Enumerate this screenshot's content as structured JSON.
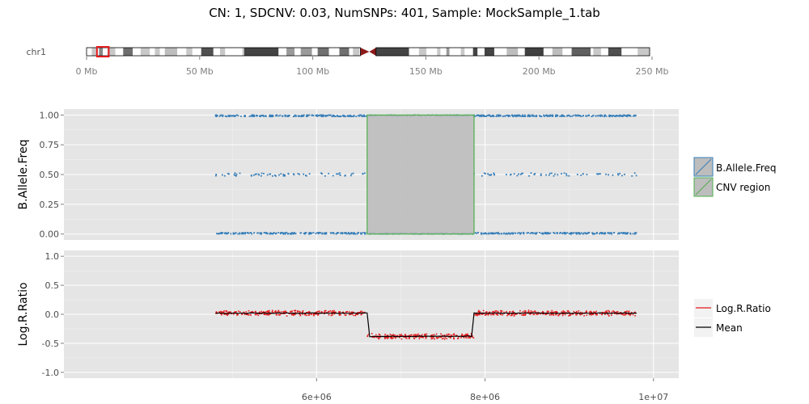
{
  "title": "CN: 1, SDCNV: 0.03, NumSNPs: 401, Sample: MockSample_1.tab",
  "ideogram": {
    "chrom_label": "chr1",
    "axis_ticks": [
      0,
      50,
      100,
      150,
      200,
      250
    ],
    "axis_tick_labels": [
      "0 Mb",
      "50 Mb",
      "100 Mb",
      "150 Mb",
      "200 Mb",
      "250 Mb"
    ],
    "chrom_length_mb": 249,
    "highlight_mb": [
      4.6,
      9.8
    ],
    "centromere_mb": 125,
    "highlight_color": "#e41a1c",
    "bands": [
      {
        "start": 0,
        "end": 2.3,
        "shade": "#ffffff"
      },
      {
        "start": 2.3,
        "end": 4.3,
        "shade": "#c8c8c8"
      },
      {
        "start": 4.3,
        "end": 5.5,
        "shade": "#ffffff"
      },
      {
        "start": 5.5,
        "end": 7.2,
        "shade": "#888888"
      },
      {
        "start": 7.2,
        "end": 9.2,
        "shade": "#ffffff"
      },
      {
        "start": 9.2,
        "end": 12.7,
        "shade": "#c8c8c8"
      },
      {
        "start": 12.7,
        "end": 16.2,
        "shade": "#ffffff"
      },
      {
        "start": 16.2,
        "end": 20.4,
        "shade": "#6e6e6e"
      },
      {
        "start": 20.4,
        "end": 23.9,
        "shade": "#ffffff"
      },
      {
        "start": 23.9,
        "end": 28,
        "shade": "#c8c8c8"
      },
      {
        "start": 28,
        "end": 30.2,
        "shade": "#ffffff"
      },
      {
        "start": 30.2,
        "end": 32.4,
        "shade": "#c8c8c8"
      },
      {
        "start": 32.4,
        "end": 34.6,
        "shade": "#ffffff"
      },
      {
        "start": 34.6,
        "end": 40.1,
        "shade": "#bdbdbd"
      },
      {
        "start": 40.1,
        "end": 44.1,
        "shade": "#ffffff"
      },
      {
        "start": 44.1,
        "end": 46.8,
        "shade": "#c8c8c8"
      },
      {
        "start": 46.8,
        "end": 50.7,
        "shade": "#ffffff"
      },
      {
        "start": 50.7,
        "end": 56.1,
        "shade": "#505050"
      },
      {
        "start": 56.1,
        "end": 59,
        "shade": "#ffffff"
      },
      {
        "start": 59,
        "end": 61.3,
        "shade": "#c8c8c8"
      },
      {
        "start": 61.3,
        "end": 68.9,
        "shade": "#ffffff"
      },
      {
        "start": 68.9,
        "end": 69.7,
        "shade": "#c8c8c8"
      },
      {
        "start": 69.7,
        "end": 84.9,
        "shade": "#444444"
      },
      {
        "start": 84.9,
        "end": 88.4,
        "shade": "#ffffff"
      },
      {
        "start": 88.4,
        "end": 92,
        "shade": "#9a9a9a"
      },
      {
        "start": 92,
        "end": 94.7,
        "shade": "#ffffff"
      },
      {
        "start": 94.7,
        "end": 99.7,
        "shade": "#9a9a9a"
      },
      {
        "start": 99.7,
        "end": 102.2,
        "shade": "#ffffff"
      },
      {
        "start": 102.2,
        "end": 107.2,
        "shade": "#707070"
      },
      {
        "start": 107.2,
        "end": 111.8,
        "shade": "#ffffff"
      },
      {
        "start": 111.8,
        "end": 116.1,
        "shade": "#707070"
      },
      {
        "start": 116.1,
        "end": 117.8,
        "shade": "#ffffff"
      },
      {
        "start": 117.8,
        "end": 120.7,
        "shade": "#c8c8c8"
      },
      {
        "start": 120.7,
        "end": 121.1,
        "shade": "#ffffff"
      },
      {
        "start": 128,
        "end": 142.6,
        "shade": "#444444"
      },
      {
        "start": 142.6,
        "end": 147,
        "shade": "#ffffff"
      },
      {
        "start": 147,
        "end": 150.3,
        "shade": "#c8c8c8"
      },
      {
        "start": 150.3,
        "end": 155,
        "shade": "#ffffff"
      },
      {
        "start": 155,
        "end": 156.5,
        "shade": "#c8c8c8"
      },
      {
        "start": 156.5,
        "end": 159.1,
        "shade": "#ffffff"
      },
      {
        "start": 159.1,
        "end": 160.5,
        "shade": "#9a9a9a"
      },
      {
        "start": 160.5,
        "end": 165.5,
        "shade": "#ffffff"
      },
      {
        "start": 165.5,
        "end": 167.2,
        "shade": "#c8c8c8"
      },
      {
        "start": 167.2,
        "end": 170.9,
        "shade": "#ffffff"
      },
      {
        "start": 170.9,
        "end": 172.9,
        "shade": "#444444"
      },
      {
        "start": 172.9,
        "end": 176,
        "shade": "#ffffff"
      },
      {
        "start": 176,
        "end": 180.3,
        "shade": "#444444"
      },
      {
        "start": 180.3,
        "end": 185.8,
        "shade": "#ffffff"
      },
      {
        "start": 185.8,
        "end": 190.8,
        "shade": "#bdbdbd"
      },
      {
        "start": 190.8,
        "end": 193.8,
        "shade": "#ffffff"
      },
      {
        "start": 193.8,
        "end": 202.1,
        "shade": "#404040"
      },
      {
        "start": 202.1,
        "end": 206,
        "shade": "#ffffff"
      },
      {
        "start": 206,
        "end": 210.5,
        "shade": "#bdbdbd"
      },
      {
        "start": 210.5,
        "end": 214.5,
        "shade": "#ffffff"
      },
      {
        "start": 214.5,
        "end": 222.9,
        "shade": "#606060"
      },
      {
        "start": 222.9,
        "end": 224.1,
        "shade": "#ffffff"
      },
      {
        "start": 224.1,
        "end": 227.5,
        "shade": "#c8c8c8"
      },
      {
        "start": 227.5,
        "end": 230.7,
        "shade": "#ffffff"
      },
      {
        "start": 230.7,
        "end": 236.6,
        "shade": "#505050"
      },
      {
        "start": 236.6,
        "end": 243.7,
        "shade": "#ffffff"
      },
      {
        "start": 243.7,
        "end": 249,
        "shade": "#c8c8c8"
      }
    ]
  },
  "chart_data": [
    {
      "type": "scatter",
      "ylabel": "B.Allele.Freq",
      "xlim": [
        3000000,
        10300000
      ],
      "ylim": [
        -0.05,
        1.05
      ],
      "y_ticks": [
        0,
        0.25,
        0.5,
        0.75,
        1
      ],
      "y_tick_labels": [
        "0.00",
        "0.25",
        "0.50",
        "0.75",
        "1.00"
      ],
      "grid": true,
      "legend_position": "right",
      "series": [
        {
          "name": "B.Allele.Freq",
          "color": "#377eb8",
          "x_range": [
            4800000,
            9800000
          ],
          "levels": [
            0,
            0.5,
            1
          ],
          "het_missing_x_range": [
            6600000,
            7870000
          ]
        }
      ],
      "cnv_region": {
        "name": "CNV region",
        "x": [
          6600000,
          7870000
        ],
        "y": [
          0,
          1
        ],
        "fill": "#bdbdbd",
        "border": "#4daf4a"
      },
      "legend": [
        "B.Allele.Freq",
        "CNV region"
      ]
    },
    {
      "type": "line",
      "ylabel": "Log.R.Ratio",
      "xlim": [
        3000000,
        10300000
      ],
      "ylim": [
        -1.1,
        1.1
      ],
      "y_ticks": [
        -1,
        -0.5,
        0,
        0.5,
        1
      ],
      "y_tick_labels": [
        "-1.0",
        "-0.5",
        "0.0",
        "0.5",
        "1.0"
      ],
      "x_ticks": [
        6000000,
        8000000,
        10000000
      ],
      "x_tick_labels": [
        "6e+06",
        "8e+06",
        "1e+07"
      ],
      "grid": true,
      "legend_position": "right",
      "series": [
        {
          "name": "Log.R.Ratio",
          "color": "#e41a1c",
          "segments": [
            {
              "x": [
                4800000,
                6600000
              ],
              "y": 0.02
            },
            {
              "x": [
                6600000,
                7870000
              ],
              "y": -0.38
            },
            {
              "x": [
                7870000,
                9800000
              ],
              "y": 0.02
            }
          ]
        },
        {
          "name": "Mean",
          "color": "#000000",
          "x": [
            4800000,
            6600000,
            6630000,
            7840000,
            7870000,
            9800000
          ],
          "y": [
            0.02,
            0.02,
            -0.38,
            -0.38,
            0.02,
            0.02
          ]
        }
      ],
      "legend": [
        "Log.R.Ratio",
        "Mean"
      ]
    }
  ]
}
